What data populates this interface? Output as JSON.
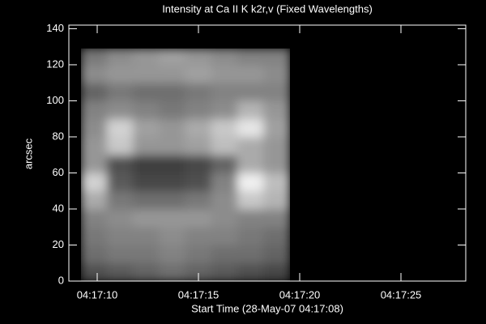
{
  "chart_data": {
    "type": "image",
    "title": "Intensity at Ca II K k2r,v (Fixed Wavelengths)",
    "xlabel": "Start Time (28-May-07 04:17:08)",
    "ylabel": "arcsec",
    "xlim": [
      8.6,
      28.2
    ],
    "ylim": [
      0,
      142
    ],
    "xticks": [
      {
        "value": 10,
        "label": "04:17:10"
      },
      {
        "value": 15,
        "label": "04:17:15"
      },
      {
        "value": 20,
        "label": "04:17:20"
      },
      {
        "value": 25,
        "label": "04:17:25"
      }
    ],
    "yticks": [
      0,
      20,
      40,
      60,
      80,
      100,
      120,
      140
    ],
    "xbins": [
      9.2,
      10.49,
      11.78,
      13.07,
      14.36,
      15.65,
      16.94,
      18.23,
      19.52
    ],
    "ybins": [
      0,
      10,
      20,
      30,
      40,
      50,
      60,
      70,
      80,
      90,
      100,
      110,
      120,
      129
    ],
    "z": [
      [
        80,
        90,
        100,
        110,
        100,
        90,
        80,
        70
      ],
      [
        110,
        120,
        120,
        130,
        120,
        110,
        110,
        100
      ],
      [
        120,
        130,
        130,
        140,
        130,
        130,
        120,
        110
      ],
      [
        130,
        140,
        150,
        150,
        150,
        140,
        130,
        130
      ],
      [
        170,
        120,
        110,
        110,
        120,
        140,
        200,
        180
      ],
      [
        210,
        90,
        70,
        70,
        80,
        130,
        240,
        190
      ],
      [
        150,
        80,
        60,
        60,
        70,
        100,
        170,
        150
      ],
      [
        150,
        200,
        150,
        150,
        160,
        190,
        170,
        150
      ],
      [
        140,
        210,
        160,
        150,
        170,
        200,
        230,
        160
      ],
      [
        130,
        140,
        130,
        120,
        130,
        140,
        180,
        150
      ],
      [
        100,
        120,
        110,
        110,
        120,
        130,
        130,
        130
      ],
      [
        140,
        150,
        150,
        150,
        160,
        150,
        150,
        140
      ],
      [
        120,
        140,
        150,
        160,
        150,
        140,
        130,
        130
      ]
    ]
  }
}
